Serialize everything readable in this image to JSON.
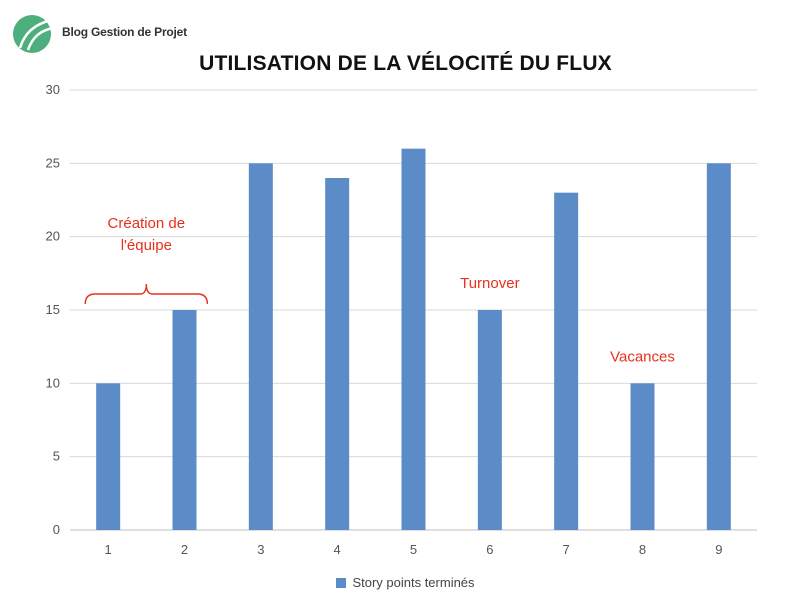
{
  "brand": {
    "name": "Blog Gestion de Projet",
    "logo_color": "#4caf7d"
  },
  "chart_data": {
    "type": "bar",
    "title": "UTILISATION DE LA VÉLOCITÉ DU FLUX",
    "xlabel": "",
    "ylabel": "",
    "categories": [
      "1",
      "2",
      "3",
      "4",
      "5",
      "6",
      "7",
      "8",
      "9"
    ],
    "series": [
      {
        "name": "Story points terminés",
        "values": [
          10,
          15,
          25,
          24,
          26,
          15,
          23,
          10,
          25
        ],
        "color": "#5b8cc8"
      }
    ],
    "ylim": [
      0,
      30
    ],
    "yticks": [
      0,
      5,
      10,
      15,
      20,
      25,
      30
    ],
    "grid": true,
    "legend_position": "bottom",
    "annotations": [
      {
        "lines": [
          "Création de",
          "l'équipe"
        ],
        "categories": [
          "1",
          "2"
        ],
        "bracket": true,
        "color": "#e8301c"
      },
      {
        "lines": [
          "Turnover"
        ],
        "categories": [
          "6"
        ],
        "bracket": false,
        "color": "#e8301c"
      },
      {
        "lines": [
          "Vacances"
        ],
        "categories": [
          "8"
        ],
        "bracket": false,
        "color": "#e8301c"
      }
    ]
  }
}
